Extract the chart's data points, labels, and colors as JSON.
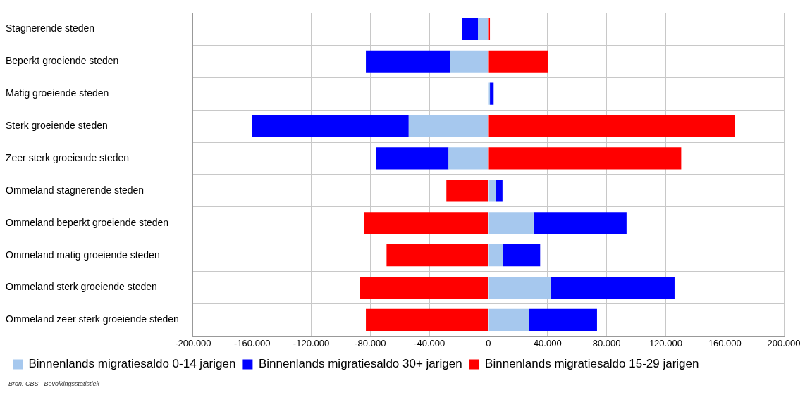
{
  "chart_data": {
    "type": "bar",
    "orientation": "horizontal",
    "stacked": true,
    "categories": [
      "Stagnerende steden",
      "Beperkt groeiende steden",
      "Matig groeiende steden",
      "Sterk groeiende steden",
      "Zeer sterk groeiende steden",
      "Ommeland stagnerende steden",
      "Ommeland beperkt groeiende steden",
      "Ommeland matig groeiende steden",
      "Ommeland sterk groeiende steden",
      "Ommeland zeer sterk groeiende steden"
    ],
    "series": [
      {
        "name": "Binnenlands migratiesaldo 0-14 jarigen",
        "color": "#a6c8ee",
        "values": [
          -7000,
          -26000,
          1000,
          -54000,
          -27000,
          5000,
          30500,
          10000,
          42000,
          27500
        ]
      },
      {
        "name": "Binnenlands migratiesaldo 30+ jarigen",
        "color": "#0000ff",
        "values": [
          -11000,
          -57000,
          2500,
          -106000,
          -49000,
          4500,
          63000,
          25000,
          84000,
          46000
        ]
      },
      {
        "name": "Binnenlands migratiesaldo 15-29 jarigen",
        "color": "#ff0000",
        "values": [
          1000,
          40500,
          0,
          167000,
          130500,
          -28500,
          -84000,
          -69000,
          -87000,
          -83000
        ]
      }
    ],
    "xlim": [
      -200000,
      200000
    ],
    "xticks": [
      {
        "value": -200000,
        "label": "-200.000"
      },
      {
        "value": -160000,
        "label": "-160.000"
      },
      {
        "value": -120000,
        "label": "-120.000"
      },
      {
        "value": -80000,
        "label": "-80.000"
      },
      {
        "value": -40000,
        "label": "-40.000"
      },
      0,
      {
        "value": 40000,
        "label": "40.000"
      },
      {
        "value": 80000,
        "label": "80.000"
      },
      {
        "value": 120000,
        "label": "120.000"
      },
      {
        "value": 160000,
        "label": "160.000"
      },
      {
        "value": 200000,
        "label": "200.000"
      }
    ],
    "grid": true,
    "legend": "bottom",
    "annotations": [
      "Bron: CBS - Bevolkingsstatistiek"
    ]
  }
}
